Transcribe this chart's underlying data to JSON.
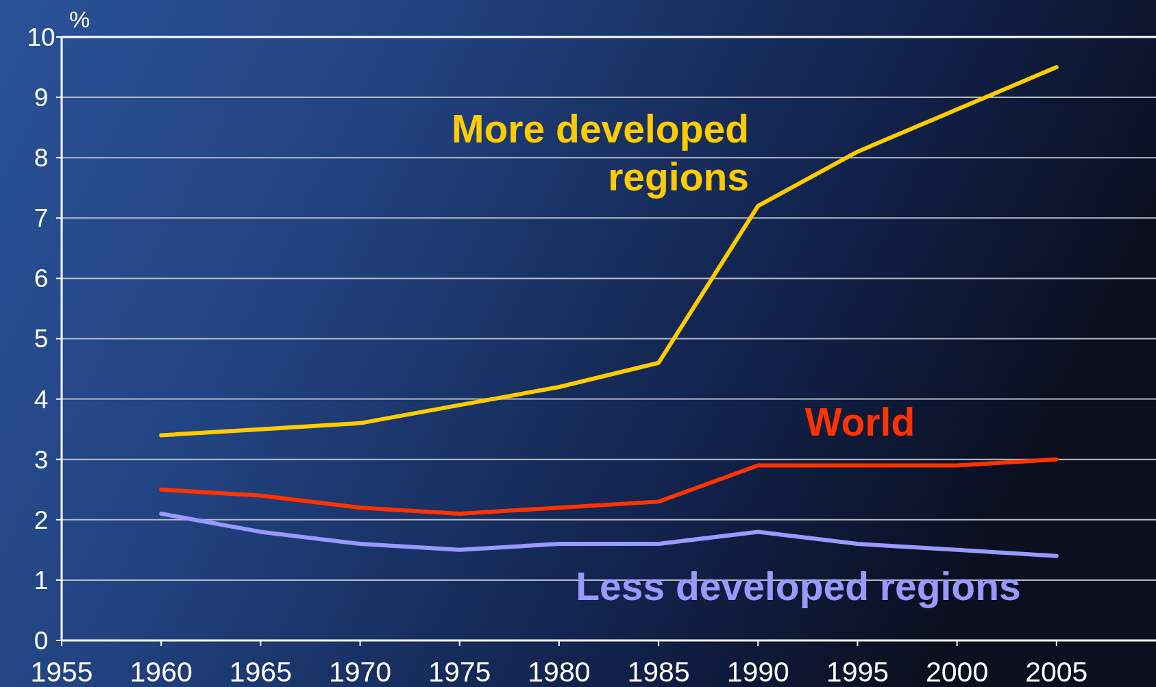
{
  "chart_data": {
    "type": "line",
    "ylabel": "%",
    "x": [
      1960,
      1965,
      1970,
      1975,
      1980,
      1985,
      1990,
      1995,
      2000,
      2005
    ],
    "series": [
      {
        "name": "More developed regions",
        "color": "#ffcc00",
        "values": [
          3.4,
          3.5,
          3.6,
          3.9,
          4.2,
          4.6,
          7.2,
          8.1,
          8.8,
          9.5
        ]
      },
      {
        "name": "World",
        "color": "#ff3300",
        "values": [
          2.5,
          2.4,
          2.2,
          2.1,
          2.2,
          2.3,
          2.9,
          2.9,
          2.9,
          3.0
        ]
      },
      {
        "name": "Less developed regions",
        "color": "#9999ff",
        "values": [
          2.1,
          1.8,
          1.6,
          1.5,
          1.6,
          1.6,
          1.8,
          1.6,
          1.5,
          1.4
        ]
      }
    ],
    "xlim": [
      1955,
      2010
    ],
    "xticks": [
      1955,
      1960,
      1965,
      1970,
      1975,
      1980,
      1985,
      1990,
      1995,
      2000,
      2005
    ],
    "ylim": [
      0,
      10
    ],
    "yticks": [
      0,
      1,
      2,
      3,
      4,
      5,
      6,
      7,
      8,
      9,
      10
    ],
    "grid": "y",
    "marker": "none",
    "line_style": "solid"
  }
}
